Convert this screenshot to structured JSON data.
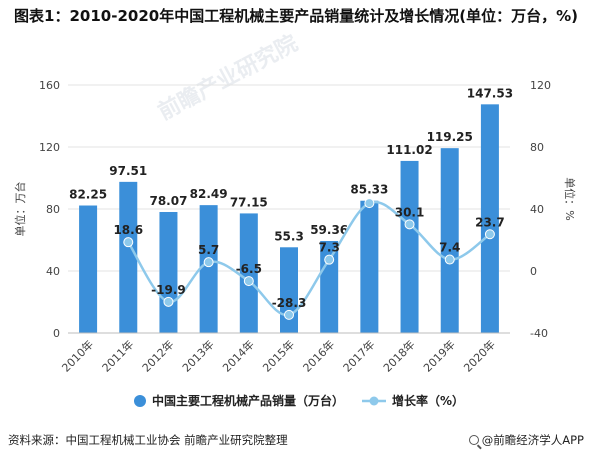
{
  "title": "图表1：2010-2020年中国工程机械主要产品销量统计及增长情况(单位：万台，%)",
  "watermark_text": "前瞻产业研究院",
  "footer": {
    "source": "资料来源：中国工程机械工业协会 前瞻产业研究院整理",
    "brand": "@前瞻经济学人APP"
  },
  "colors": {
    "bar": "#3b8fd9",
    "line": "#8ec9eb",
    "grid": "#e3e3e3",
    "axis_text": "#444444"
  },
  "chart_data": {
    "type": "bar",
    "categories": [
      "2010年",
      "2011年",
      "2012年",
      "2013年",
      "2014年",
      "2015年",
      "2016年",
      "2017年",
      "2018年",
      "2019年",
      "2020年"
    ],
    "series": [
      {
        "name": "中国主要工程机械产品销量（万台）",
        "type": "bar",
        "axis": "left",
        "values": [
          82.25,
          97.51,
          78.07,
          82.49,
          77.15,
          55.3,
          59.36,
          85.33,
          111.02,
          119.25,
          147.53
        ],
        "labels": [
          "82.25",
          "97.51",
          "78.07",
          "82.49",
          "77.15",
          "55.3",
          "59.36",
          "85.33",
          "111.02",
          "119.25",
          "147.53"
        ]
      },
      {
        "name": "增长率（%）",
        "type": "line",
        "axis": "right",
        "values": [
          null,
          18.6,
          -19.9,
          5.7,
          -6.5,
          -28.3,
          7.3,
          43.8,
          30.1,
          7.4,
          23.7
        ],
        "labels": [
          "",
          "18.6",
          "-19.9",
          "5.7",
          "-6.5",
          "-28.3",
          "7.3",
          "",
          "30.1",
          "7.4",
          "23.7"
        ]
      }
    ],
    "y_left": {
      "label": "单位：万台",
      "min": 0,
      "max": 160,
      "ticks": [
        "0",
        "40",
        "80",
        "120",
        "160"
      ]
    },
    "y_right": {
      "label": "单位：%",
      "min": -40,
      "max": 120,
      "ticks": [
        "-40",
        "0",
        "40",
        "80",
        "120"
      ]
    },
    "grid": true,
    "legend_position": "bottom"
  }
}
